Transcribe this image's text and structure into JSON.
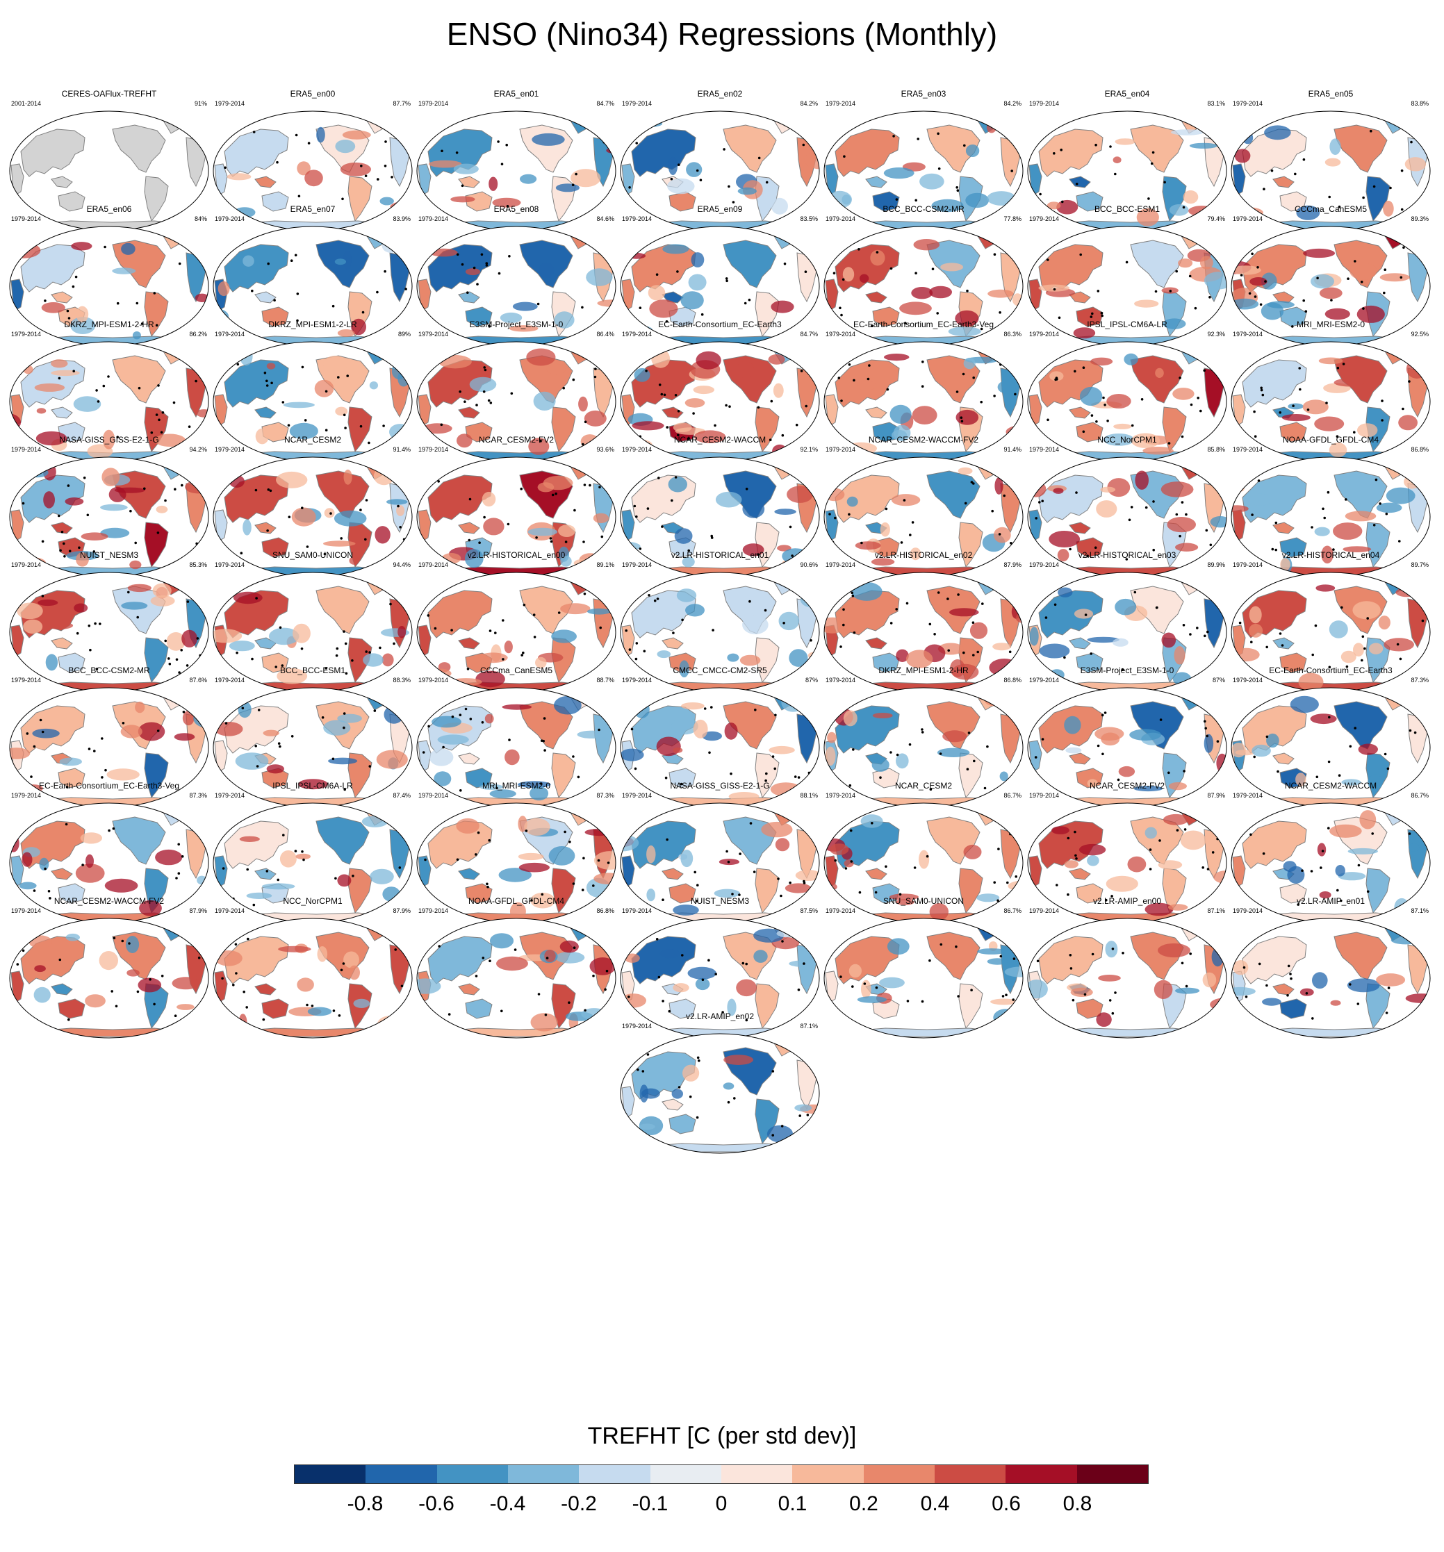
{
  "title": "ENSO (Nino34) Regressions (Monthly)",
  "colorbar": {
    "label": "TREFHT [C (per std dev)]",
    "ticks": [
      "-0.8",
      "-0.6",
      "-0.4",
      "-0.2",
      "-0.1",
      "0",
      "0.1",
      "0.2",
      "0.4",
      "0.6",
      "0.8"
    ],
    "colors": [
      "#08306b",
      "#2166ac",
      "#4393c3",
      "#7fb8da",
      "#c6dbef",
      "#e8edf2",
      "#fbe5dc",
      "#f7b99b",
      "#e8876b",
      "#cc4c44",
      "#a50f26",
      "#6b0018"
    ]
  },
  "panels": [
    {
      "name": "CERES-OAFlux-TREFHT",
      "years": "2001-2014",
      "pct": "91%",
      "shading": 0,
      "style": "gray"
    },
    {
      "name": "ERA5_en00",
      "years": "1979-2014",
      "pct": "87.7%",
      "shading": 0.3,
      "style": "cool"
    },
    {
      "name": "ERA5_en01",
      "years": "1979-2014",
      "pct": "84.7%",
      "shading": 0.3,
      "style": "cool"
    },
    {
      "name": "ERA5_en02",
      "years": "1979-2014",
      "pct": "84.2%",
      "shading": 0.3,
      "style": "cool"
    },
    {
      "name": "ERA5_en03",
      "years": "1979-2014",
      "pct": "84.2%",
      "shading": 0.3,
      "style": "cool"
    },
    {
      "name": "ERA5_en04",
      "years": "1979-2014",
      "pct": "83.1%",
      "shading": 0.3,
      "style": "cool"
    },
    {
      "name": "ERA5_en05",
      "years": "1979-2014",
      "pct": "83.8%",
      "shading": 0.3,
      "style": "cool"
    },
    {
      "name": "ERA5_en06",
      "years": "1979-2014",
      "pct": "84%",
      "shading": 0.3,
      "style": "cool"
    },
    {
      "name": "ERA5_en07",
      "years": "1979-2014",
      "pct": "83.9%",
      "shading": 0.3,
      "style": "cool"
    },
    {
      "name": "ERA5_en08",
      "years": "1979-2014",
      "pct": "84.6%",
      "shading": 0.3,
      "style": "cool"
    },
    {
      "name": "ERA5_en09",
      "years": "1979-2014",
      "pct": "83.5%",
      "shading": 0.3,
      "style": "cool"
    },
    {
      "name": "BCC_BCC-CSM2-MR",
      "years": "1979-2014",
      "pct": "77.8%",
      "shading": 0.5,
      "style": "warm"
    },
    {
      "name": "BCC_BCC-ESM1",
      "years": "1979-2014",
      "pct": "79.4%",
      "shading": 0.5,
      "style": "warm"
    },
    {
      "name": "CCCma_CanESM5",
      "years": "1979-2014",
      "pct": "89.3%",
      "shading": 0.9,
      "style": "hot"
    },
    {
      "name": "DKRZ_MPI-ESM1-2-HR",
      "years": "1979-2014",
      "pct": "86.2%",
      "shading": 0.6,
      "style": "warm"
    },
    {
      "name": "DKRZ_MPI-ESM1-2-LR",
      "years": "1979-2014",
      "pct": "89%",
      "shading": 0.6,
      "style": "warm"
    },
    {
      "name": "E3SM-Project_E3SM-1-0",
      "years": "1979-2014",
      "pct": "86.4%",
      "shading": 0.5,
      "style": "warm"
    },
    {
      "name": "EC-Earth-Consortium_EC-Earth3",
      "years": "1979-2014",
      "pct": "84.7%",
      "shading": 0.8,
      "style": "hot"
    },
    {
      "name": "EC-Earth-Consortium_EC-Earth3-Veg",
      "years": "1979-2014",
      "pct": "86.3%",
      "shading": 0.6,
      "style": "warm"
    },
    {
      "name": "IPSL_IPSL-CM6A-LR",
      "years": "1979-2014",
      "pct": "92.3%",
      "shading": 0.8,
      "style": "hot"
    },
    {
      "name": "MRI_MRI-ESM2-0",
      "years": "1979-2014",
      "pct": "92.5%",
      "shading": 0.6,
      "style": "warm"
    },
    {
      "name": "NASA-GISS_GISS-E2-1-G",
      "years": "1979-2014",
      "pct": "94.2%",
      "shading": 0.8,
      "style": "hot"
    },
    {
      "name": "NCAR_CESM2",
      "years": "1979-2014",
      "pct": "91.4%",
      "shading": 0.6,
      "style": "warm"
    },
    {
      "name": "NCAR_CESM2-FV2",
      "years": "1979-2014",
      "pct": "93.6%",
      "shading": 0.8,
      "style": "hot"
    },
    {
      "name": "NCAR_CESM2-WACCM",
      "years": "1979-2014",
      "pct": "92.1%",
      "shading": 0.4,
      "style": "cool"
    },
    {
      "name": "NCAR_CESM2-WACCM-FV2",
      "years": "1979-2014",
      "pct": "91.4%",
      "shading": 0.5,
      "style": "warm"
    },
    {
      "name": "NCC_NorCPM1",
      "years": "1979-2014",
      "pct": "85.8%",
      "shading": 0.6,
      "style": "warm"
    },
    {
      "name": "NOAA-GFDL_GFDL-CM4",
      "years": "1979-2014",
      "pct": "86.8%",
      "shading": 0.6,
      "style": "warm"
    },
    {
      "name": "NUIST_NESM3",
      "years": "1979-2014",
      "pct": "85.3%",
      "shading": 0.6,
      "style": "warm"
    },
    {
      "name": "SNU_SAM0-UNICON",
      "years": "1979-2014",
      "pct": "94.4%",
      "shading": 0.6,
      "style": "warm"
    },
    {
      "name": "v2.LR-HISTORICAL_en00",
      "years": "1979-2014",
      "pct": "89.1%",
      "shading": 0.5,
      "style": "warm"
    },
    {
      "name": "v2.LR-HISTORICAL_en01",
      "years": "1979-2014",
      "pct": "90.6%",
      "shading": 0.4,
      "style": "cool"
    },
    {
      "name": "v2.LR-HISTORICAL_en02",
      "years": "1979-2014",
      "pct": "87.9%",
      "shading": 0.7,
      "style": "hot"
    },
    {
      "name": "v2.LR-HISTORICAL_en03",
      "years": "1979-2014",
      "pct": "89.9%",
      "shading": 0.4,
      "style": "cool"
    },
    {
      "name": "v2.LR-HISTORICAL_en04",
      "years": "1979-2014",
      "pct": "89.7%",
      "shading": 0.5,
      "style": "warm"
    },
    {
      "name": "BCC_BCC-CSM2-MR",
      "years": "1979-2014",
      "pct": "87.6%",
      "shading": 0.4,
      "style": "cool"
    },
    {
      "name": "BCC_BCC-ESM1",
      "years": "1979-2014",
      "pct": "88.3%",
      "shading": 0.4,
      "style": "cool"
    },
    {
      "name": "CCCma_CanESM5",
      "years": "1979-2014",
      "pct": "88.7%",
      "shading": 0.6,
      "style": "cool"
    },
    {
      "name": "CMCC_CMCC-CM2-SR5",
      "years": "1979-2014",
      "pct": "87%",
      "shading": 0.5,
      "style": "cool"
    },
    {
      "name": "DKRZ_MPI-ESM1-2-HR",
      "years": "1979-2014",
      "pct": "86.8%",
      "shading": 0.4,
      "style": "cool"
    },
    {
      "name": "E3SM-Project_E3SM-1-0",
      "years": "1979-2014",
      "pct": "87%",
      "shading": 0.4,
      "style": "cool"
    },
    {
      "name": "EC-Earth-Consortium_EC-Earth3",
      "years": "1979-2014",
      "pct": "87.3%",
      "shading": 0.3,
      "style": "cool"
    },
    {
      "name": "EC-Earth-Consortium_EC-Earth3-Veg",
      "years": "1979-2014",
      "pct": "87.3%",
      "shading": 0.4,
      "style": "warm"
    },
    {
      "name": "IPSL_IPSL-CM6A-LR",
      "years": "1979-2014",
      "pct": "87.4%",
      "shading": 0.3,
      "style": "cool"
    },
    {
      "name": "MRI_MRI-ESM2-0",
      "years": "1979-2014",
      "pct": "87.3%",
      "shading": 0.6,
      "style": "warm"
    },
    {
      "name": "NASA-GISS_GISS-E2-1-G",
      "years": "1979-2014",
      "pct": "88.1%",
      "shading": 0.5,
      "style": "cool"
    },
    {
      "name": "NCAR_CESM2",
      "years": "1979-2014",
      "pct": "86.7%",
      "shading": 0.5,
      "style": "warm"
    },
    {
      "name": "NCAR_CESM2-FV2",
      "years": "1979-2014",
      "pct": "87.9%",
      "shading": 0.5,
      "style": "warm"
    },
    {
      "name": "NCAR_CESM2-WACCM",
      "years": "1979-2014",
      "pct": "86.7%",
      "shading": 0.4,
      "style": "cool"
    },
    {
      "name": "NCAR_CESM2-WACCM-FV2",
      "years": "1979-2014",
      "pct": "87.9%",
      "shading": 0.4,
      "style": "warm"
    },
    {
      "name": "NCC_NorCPM1",
      "years": "1979-2014",
      "pct": "87.9%",
      "shading": 0.5,
      "style": "warm"
    },
    {
      "name": "NOAA-GFDL_GFDL-CM4",
      "years": "1979-2014",
      "pct": "86.8%",
      "shading": 0.5,
      "style": "warm"
    },
    {
      "name": "NUIST_NESM3",
      "years": "1979-2014",
      "pct": "87.5%",
      "shading": 0.5,
      "style": "cool"
    },
    {
      "name": "SNU_SAM0-UNICON",
      "years": "1979-2014",
      "pct": "86.7%",
      "shading": 0.5,
      "style": "cool"
    },
    {
      "name": "v2.LR-AMIP_en00",
      "years": "1979-2014",
      "pct": "87.1%",
      "shading": 0.4,
      "style": "cool"
    },
    {
      "name": "v2.LR-AMIP_en01",
      "years": "1979-2014",
      "pct": "87.1%",
      "shading": 0.4,
      "style": "cool"
    },
    {
      "name": "v2.LR-AMIP_en02",
      "years": "1979-2014",
      "pct": "87.1%",
      "shading": 0.4,
      "style": "cool"
    }
  ]
}
